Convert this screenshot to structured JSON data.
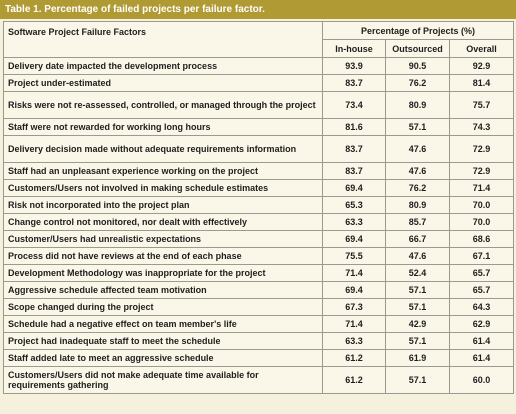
{
  "title": "Table 1. Percentage of failed projects per failure factor.",
  "header": {
    "factor": "Software Project Failure Factors",
    "group": "Percentage of Projects (%)",
    "columns": [
      "In-house",
      "Outsourced",
      "Overall"
    ]
  },
  "table": {
    "rows": [
      [
        "Delivery date impacted the development process",
        "93.9",
        "90.5",
        "92.9"
      ],
      [
        "Project under-estimated",
        "83.7",
        "76.2",
        "81.4"
      ],
      [
        "Risks were not re-assessed, controlled, or managed through the project",
        "73.4",
        "80.9",
        "75.7"
      ],
      [
        "Staff were not rewarded for working long hours",
        "81.6",
        "57.1",
        "74.3"
      ],
      [
        "Delivery decision made without adequate requirements information",
        "83.7",
        "47.6",
        "72.9"
      ],
      [
        "Staff had an unpleasant experience working on the project",
        "83.7",
        "47.6",
        "72.9"
      ],
      [
        "Customers/Users not involved in making schedule estimates",
        "69.4",
        "76.2",
        "71.4"
      ],
      [
        "Risk not incorporated into the project plan",
        "65.3",
        "80.9",
        "70.0"
      ],
      [
        "Change control not monitored, nor dealt with effectively",
        "63.3",
        "85.7",
        "70.0"
      ],
      [
        "Customer/Users had unrealistic expectations",
        "69.4",
        "66.7",
        "68.6"
      ],
      [
        "Process did not have reviews at the end of each phase",
        "75.5",
        "47.6",
        "67.1"
      ],
      [
        "Development Methodology was inappropriate for the project",
        "71.4",
        "52.4",
        "65.7"
      ],
      [
        "Aggressive schedule affected team motivation",
        "69.4",
        "57.1",
        "65.7"
      ],
      [
        "Scope changed during the project",
        "67.3",
        "57.1",
        "64.3"
      ],
      [
        "Schedule had a negative effect on team member's life",
        "71.4",
        "42.9",
        "62.9"
      ],
      [
        "Project had inadequate staff to meet the schedule",
        "63.3",
        "57.1",
        "61.4"
      ],
      [
        "Staff added late to meet an aggressive schedule",
        "61.2",
        "61.9",
        "61.4"
      ],
      [
        "Customers/Users did not make adequate time available for requirements gathering",
        "61.2",
        "57.1",
        "60.0"
      ]
    ]
  }
}
